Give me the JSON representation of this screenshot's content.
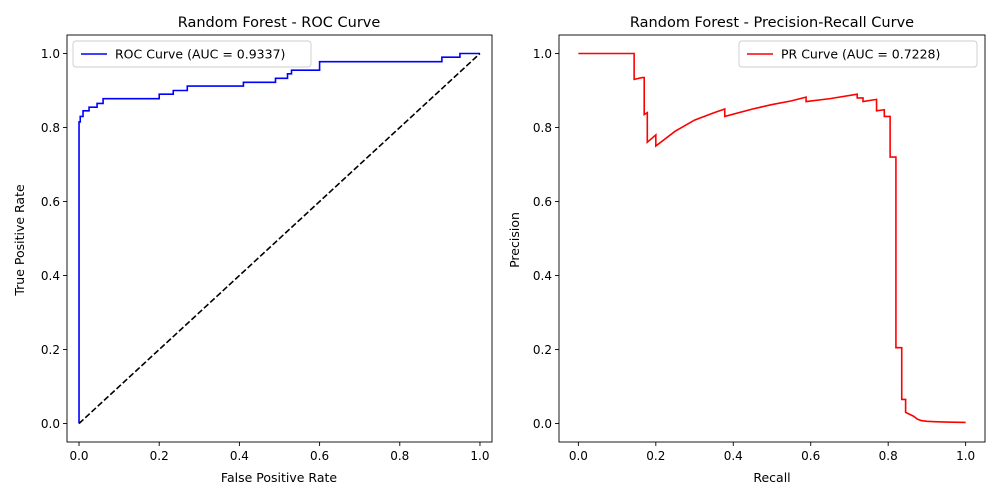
{
  "chart_data": [
    {
      "type": "line",
      "title": "Random Forest - ROC Curve",
      "xlabel": "False Positive Rate",
      "ylabel": "True Positive Rate",
      "xlim": [
        -0.03,
        1.03
      ],
      "ylim": [
        -0.05,
        1.05
      ],
      "xticks": [
        "0.0",
        "0.2",
        "0.4",
        "0.6",
        "0.8",
        "1.0"
      ],
      "yticks": [
        "0.0",
        "0.2",
        "0.4",
        "0.6",
        "0.8",
        "1.0"
      ],
      "grid": false,
      "legend_position": "top-left",
      "series": [
        {
          "name": "ROC Curve (AUC = 0.9337)",
          "color": "#0000ff",
          "style": "solid",
          "x": [
            0.0,
            0.0,
            0.003,
            0.003,
            0.01,
            0.01,
            0.025,
            0.025,
            0.045,
            0.045,
            0.06,
            0.06,
            0.09,
            0.09,
            0.2,
            0.2,
            0.235,
            0.235,
            0.27,
            0.27,
            0.41,
            0.41,
            0.49,
            0.49,
            0.52,
            0.52,
            0.53,
            0.53,
            0.6,
            0.6,
            0.905,
            0.905,
            0.95,
            0.95,
            1.0
          ],
          "y": [
            0.0,
            0.815,
            0.815,
            0.83,
            0.83,
            0.845,
            0.845,
            0.855,
            0.855,
            0.865,
            0.865,
            0.878,
            0.878,
            0.878,
            0.878,
            0.89,
            0.89,
            0.9,
            0.9,
            0.912,
            0.912,
            0.922,
            0.922,
            0.933,
            0.933,
            0.945,
            0.945,
            0.955,
            0.955,
            0.978,
            0.978,
            0.99,
            0.99,
            1.0,
            1.0
          ]
        },
        {
          "name": "",
          "color": "#000000",
          "style": "dashed",
          "x": [
            0.0,
            1.0
          ],
          "y": [
            0.0,
            1.0
          ]
        }
      ]
    },
    {
      "type": "line",
      "title": "Random Forest - Precision-Recall Curve",
      "xlabel": "Recall",
      "ylabel": "Precision",
      "xlim": [
        -0.05,
        1.05
      ],
      "ylim": [
        -0.05,
        1.05
      ],
      "xticks": [
        "0.0",
        "0.2",
        "0.4",
        "0.6",
        "0.8",
        "1.0"
      ],
      "yticks": [
        "0.0",
        "0.2",
        "0.4",
        "0.6",
        "0.8",
        "1.0"
      ],
      "grid": false,
      "legend_position": "top-right",
      "series": [
        {
          "name": "PR Curve (AUC = 0.7228)",
          "color": "#ff0000",
          "style": "solid",
          "x": [
            0.0,
            0.144,
            0.144,
            0.165,
            0.17,
            0.17,
            0.178,
            0.178,
            0.2,
            0.2,
            0.25,
            0.3,
            0.35,
            0.378,
            0.378,
            0.45,
            0.5,
            0.55,
            0.588,
            0.588,
            0.65,
            0.72,
            0.72,
            0.735,
            0.735,
            0.77,
            0.77,
            0.79,
            0.79,
            0.805,
            0.805,
            0.82,
            0.82,
            0.835,
            0.835,
            0.845,
            0.845,
            0.855,
            0.865,
            0.875,
            0.885,
            0.9,
            0.92,
            0.95,
            1.0
          ],
          "y": [
            1.0,
            1.0,
            0.93,
            0.935,
            0.935,
            0.835,
            0.84,
            0.76,
            0.78,
            0.75,
            0.79,
            0.82,
            0.84,
            0.85,
            0.83,
            0.85,
            0.862,
            0.872,
            0.882,
            0.87,
            0.878,
            0.89,
            0.88,
            0.88,
            0.87,
            0.876,
            0.845,
            0.848,
            0.83,
            0.83,
            0.72,
            0.72,
            0.205,
            0.205,
            0.065,
            0.065,
            0.03,
            0.025,
            0.02,
            0.012,
            0.008,
            0.006,
            0.005,
            0.004,
            0.003
          ]
        }
      ]
    }
  ]
}
